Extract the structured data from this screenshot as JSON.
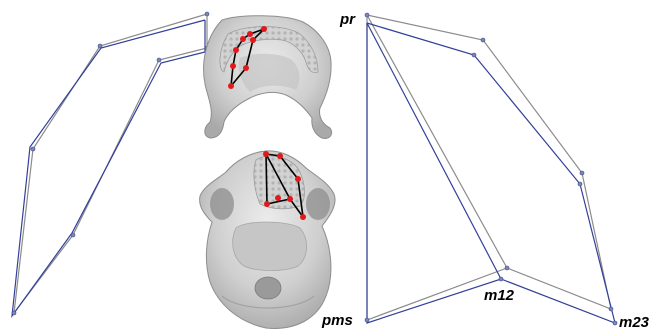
{
  "landmark_labels": {
    "pr": "pr",
    "pms": "pms",
    "m12": "m12",
    "m23": "m23"
  },
  "colors": {
    "outline_gray": "#8c8c8c",
    "outline_blue": "#33409a",
    "landmark_red": "#e0191c",
    "bone_light": "#d8d8d8",
    "bone_mid": "#bdbdbd",
    "bone_dark": "#8e8e8e",
    "connector_black": "#000000"
  },
  "panels": [
    {
      "name": "left-shape-comparison"
    },
    {
      "name": "mandible-occlusal-view"
    },
    {
      "name": "skull-basal-view"
    },
    {
      "name": "right-shape-comparison"
    }
  ]
}
